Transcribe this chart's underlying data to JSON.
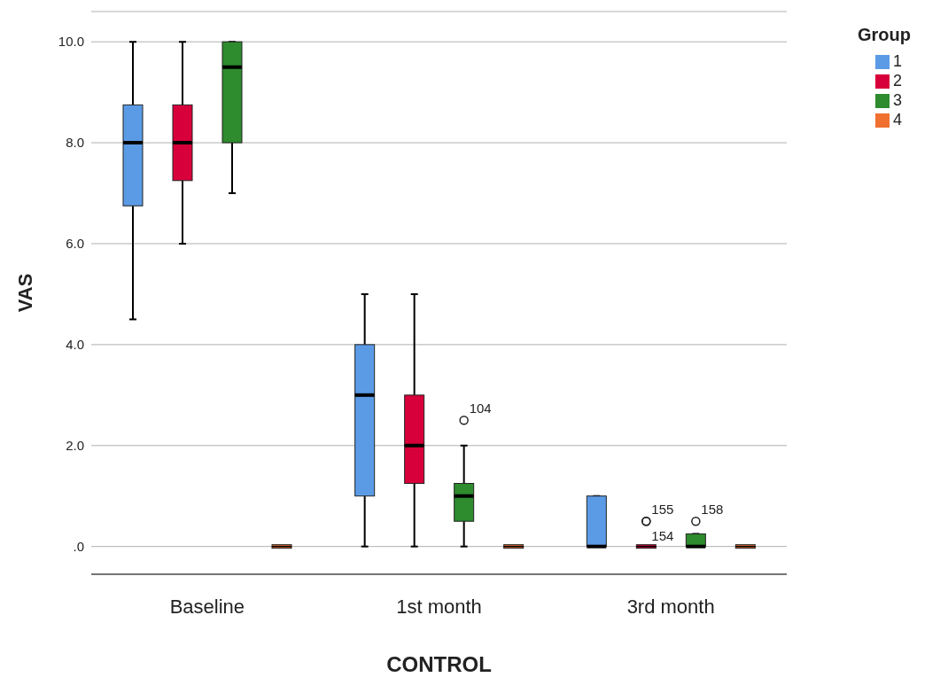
{
  "chart_data": {
    "type": "box",
    "xlabel": "CONTROL",
    "ylabel": "VAS",
    "legend_title": "Group",
    "legend": "top right",
    "grid": "y",
    "categories": [
      "Baseline",
      "1st month",
      "3rd month"
    ],
    "ylim": [
      -0.55,
      10.6
    ],
    "yticks": [
      {
        "value": 0,
        "label": ".0"
      },
      {
        "value": 2,
        "label": "2.0"
      },
      {
        "value": 4,
        "label": "4.0"
      },
      {
        "value": 6,
        "label": "6.0"
      },
      {
        "value": 8,
        "label": "8.0"
      },
      {
        "value": 10,
        "label": "10.0"
      }
    ],
    "series": [
      {
        "name": "1",
        "color": "#5b9be6",
        "boxes": [
          {
            "low": 4.5,
            "q1": 6.75,
            "median": 8,
            "q3": 8.75,
            "high": 10
          },
          {
            "low": 0,
            "q1": 1,
            "median": 3,
            "q3": 4,
            "high": 5
          },
          {
            "low": 0,
            "q1": 0,
            "median": 0,
            "q3": 1,
            "high": 1
          }
        ]
      },
      {
        "name": "2",
        "color": "#d8003a",
        "boxes": [
          {
            "low": 6,
            "q1": 7.25,
            "median": 8,
            "q3": 8.75,
            "high": 10
          },
          {
            "low": 0,
            "q1": 1.25,
            "median": 2,
            "q3": 3,
            "high": 5
          },
          {
            "low": 0,
            "q1": 0,
            "median": 0,
            "q3": 0,
            "high": 0,
            "outliers": [
              0.5,
              0.5
            ]
          }
        ]
      },
      {
        "name": "3",
        "color": "#2e8b2e",
        "boxes": [
          {
            "low": 7,
            "q1": 8,
            "median": 9.5,
            "q3": 10,
            "high": 10
          },
          {
            "low": 0,
            "q1": 0.5,
            "median": 1,
            "q3": 1.25,
            "high": 2,
            "outliers": [
              2.5
            ]
          },
          {
            "low": 0,
            "q1": 0,
            "median": 0,
            "q3": 0.25,
            "high": 0.25,
            "outliers": [
              0.5
            ]
          }
        ]
      },
      {
        "name": "4",
        "color": "#f07030",
        "boxes": [
          {
            "low": 0,
            "q1": 0,
            "median": 0,
            "q3": 0,
            "high": 0
          },
          {
            "low": 0,
            "q1": 0,
            "median": 0,
            "q3": 0,
            "high": 0
          },
          {
            "low": 0,
            "q1": 0,
            "median": 0,
            "q3": 0,
            "high": 0
          }
        ]
      }
    ],
    "annotations": [
      "104",
      "155",
      "154",
      "158"
    ]
  }
}
